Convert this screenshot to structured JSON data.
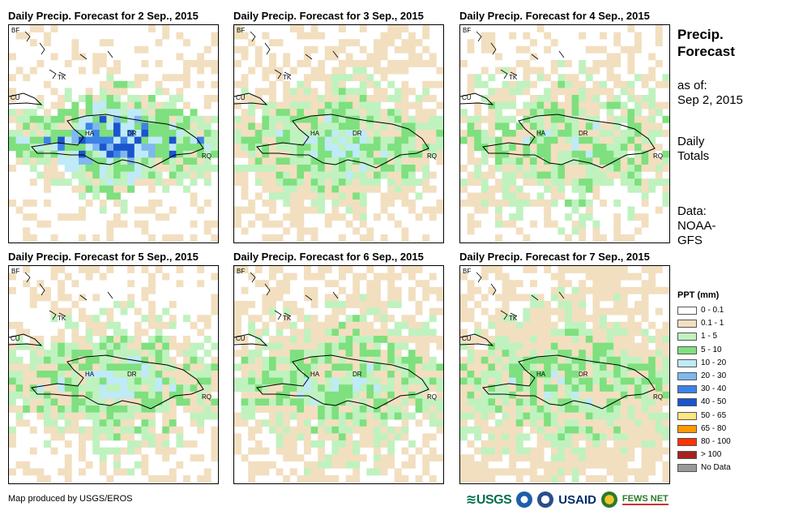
{
  "panels": [
    {
      "title": "Daily Precip. Forecast for 2 Sep., 2015"
    },
    {
      "title": "Daily Precip. Forecast for 3 Sep., 2015"
    },
    {
      "title": "Daily Precip. Forecast for 4 Sep., 2015"
    },
    {
      "title": "Daily Precip. Forecast for 5 Sep., 2015"
    },
    {
      "title": "Daily Precip. Forecast for 6 Sep., 2015"
    },
    {
      "title": "Daily Precip. Forecast for 7 Sep., 2015"
    }
  ],
  "place_labels": {
    "bf": "BF",
    "tk": "TK",
    "cu": "CU",
    "ha": "HA",
    "dr": "DR",
    "rq": "RQ"
  },
  "side": {
    "heading_line1": "Precip.",
    "heading_line2": "Forecast",
    "asof_line1": "as of:",
    "asof_line2": "Sep 2, 2015",
    "totals_line1": "Daily",
    "totals_line2": "Totals",
    "data_line1": "Data:",
    "data_line2": "NOAA-",
    "data_line3": "GFS"
  },
  "legend": {
    "title": "PPT (mm)",
    "items": [
      {
        "label": "0 - 0.1",
        "color": "#ffffff"
      },
      {
        "label": "0.1 - 1",
        "color": "#f2dfc0"
      },
      {
        "label": "1 - 5",
        "color": "#bff2bf"
      },
      {
        "label": "5 - 10",
        "color": "#7ee07e"
      },
      {
        "label": "10 - 20",
        "color": "#bfeaf7"
      },
      {
        "label": "20 - 30",
        "color": "#7fb8f0"
      },
      {
        "label": "30 - 40",
        "color": "#3d82e6"
      },
      {
        "label": "40 - 50",
        "color": "#1a55cc"
      },
      {
        "label": "50 - 65",
        "color": "#ffe680"
      },
      {
        "label": "65 - 80",
        "color": "#ff9900"
      },
      {
        "label": "80 - 100",
        "color": "#ff3300"
      },
      {
        "label": "> 100",
        "color": "#a82020"
      },
      {
        "label": "No Data",
        "color": "#999999"
      }
    ]
  },
  "footer": {
    "credit": "Map produced by USGS/EROS",
    "usgs": "USGS",
    "usaid": "USAID",
    "fewsnet": "FEWS NET"
  }
}
